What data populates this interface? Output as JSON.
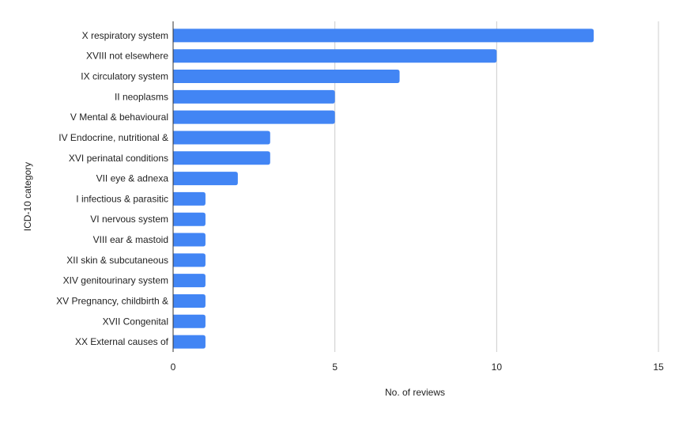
{
  "chart_data": {
    "type": "bar",
    "orientation": "horizontal",
    "categories": [
      "X respiratory system",
      "XVIII not elsewhere",
      "IX circulatory system",
      "II neoplasms",
      "V Mental & behavioural",
      "IV Endocrine, nutritional &",
      "XVI perinatal conditions",
      "VII eye & adnexa",
      "I infectious & parasitic",
      "VI nervous system",
      "VIII ear & mastoid",
      "XII skin & subcutaneous",
      "XIV genitourinary system",
      "XV Pregnancy, childbirth &",
      "XVII Congenital",
      "XX External causes of"
    ],
    "values": [
      13,
      10,
      7,
      5,
      5,
      3,
      3,
      2,
      1,
      1,
      1,
      1,
      1,
      1,
      1,
      1
    ],
    "xlabel": "No. of reviews",
    "ylabel": "ICD-10 category",
    "xlim": [
      0,
      15
    ],
    "xticks": [
      "0",
      "5",
      "10",
      "15"
    ],
    "grid": "vertical",
    "bar_color": "#4285f4"
  }
}
